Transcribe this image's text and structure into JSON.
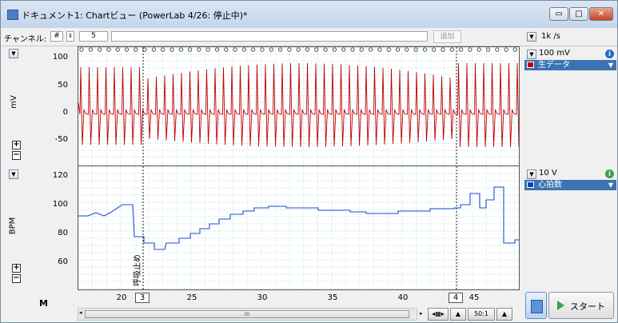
{
  "window": {
    "title": "ドキュメント1: Chartビュー (PowerLab 4/26: 停止中)*",
    "minimize_label": "▭",
    "maximize_label": "□",
    "close_label": "✕"
  },
  "toolbar": {
    "channel_label": "チャンネル:",
    "channel_selector": "#",
    "channel_value": "5",
    "add_button": "追加",
    "sample_rate": "1k /s"
  },
  "channels": [
    {
      "range": "100 mV",
      "name": "生データ",
      "swatch_color": "#c00000",
      "info_color": "#1e6fd0",
      "info_glyph": "i",
      "y_axis_title": "mV",
      "y_ticks": [
        "100",
        "50",
        "0",
        "-50"
      ]
    },
    {
      "range": "10 V",
      "name": "心拍数",
      "swatch_color": "#1040c0",
      "info_color": "#3aa04a",
      "info_glyph": "i",
      "y_axis_title": "BPM",
      "y_ticks": [
        "120",
        "100",
        "80",
        "60"
      ]
    }
  ],
  "x_axis": {
    "ticks": [
      "20",
      "25",
      "30",
      "35",
      "40",
      "45"
    ],
    "marker_3": "3",
    "marker_4": "4"
  },
  "annotation": "呼吸止め",
  "bottom": {
    "zoom_label": "50:1",
    "start_label": "スタート",
    "scroll_grip": "III",
    "mark_icon": "M"
  },
  "colors": {
    "ecg_trace": "#c00000",
    "bpm_trace": "#1a4fd0",
    "accent": "#3b73b3"
  }
}
